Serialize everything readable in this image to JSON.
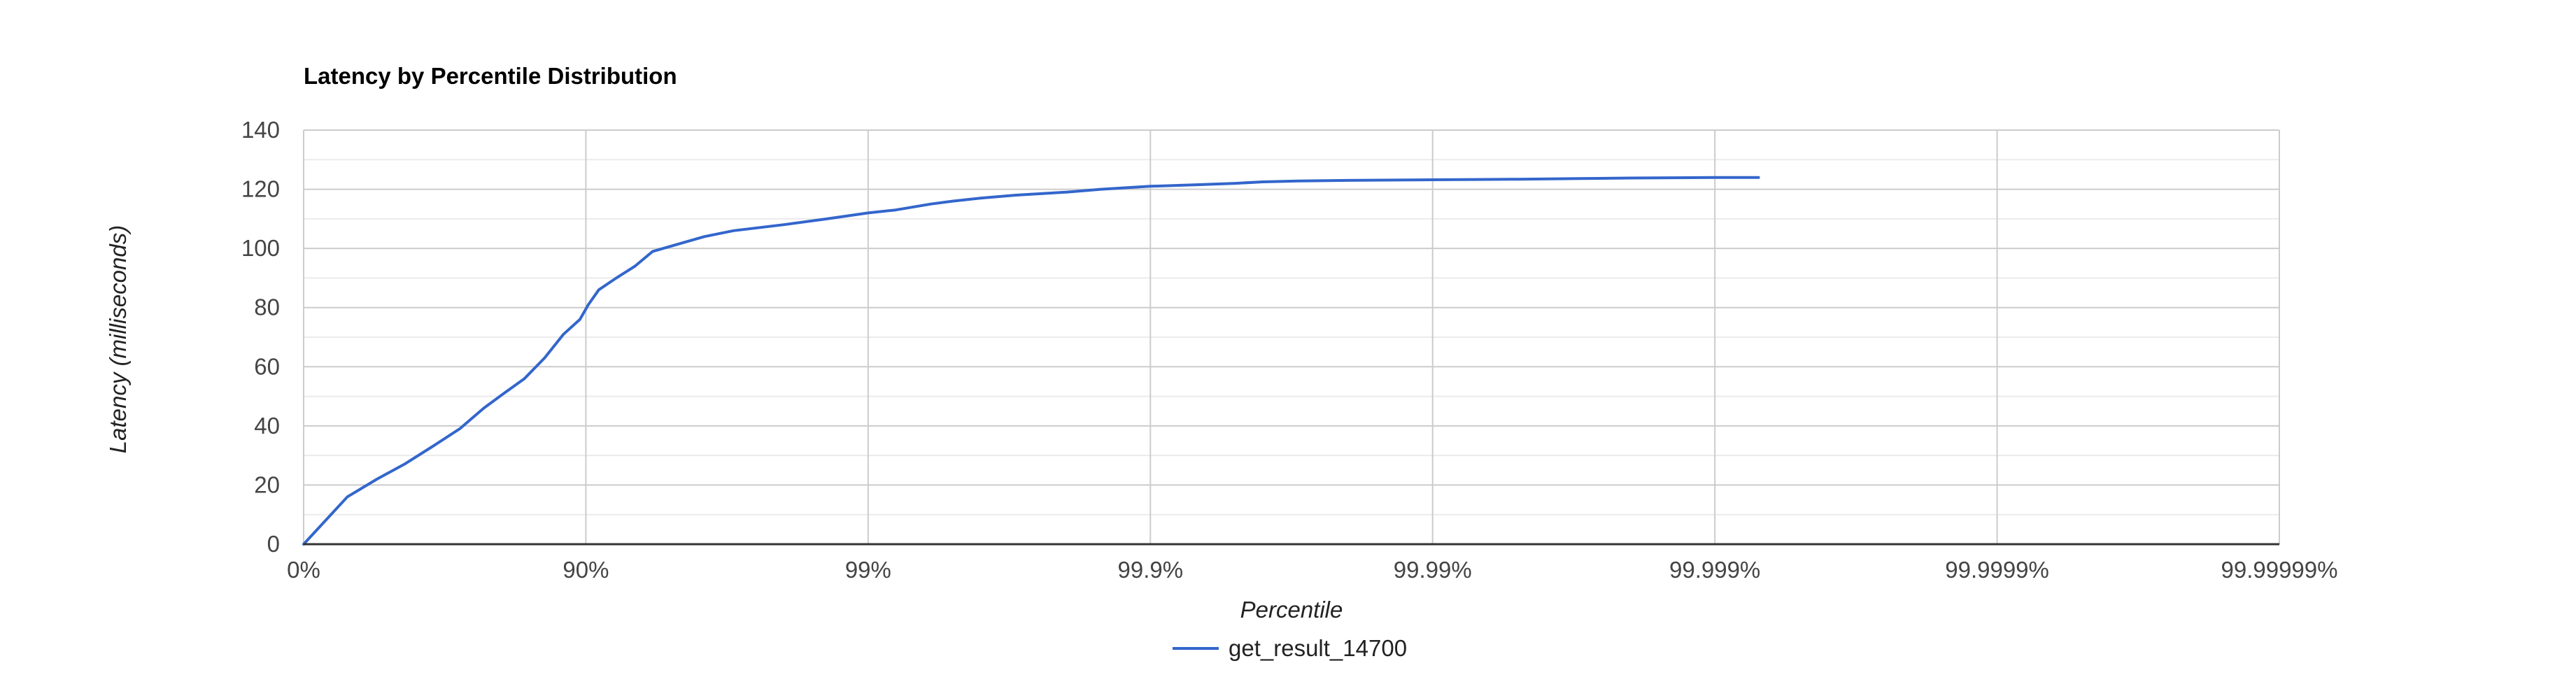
{
  "chart_data": {
    "type": "line",
    "title": "Latency by Percentile Distribution",
    "xlabel": "Percentile",
    "ylabel": "Latency (milliseconds)",
    "x_scale": "log-inverse-percentile",
    "x_ticks": [
      "0%",
      "90%",
      "99%",
      "99.9%",
      "99.99%",
      "99.999%",
      "99.9999%",
      "99.99999%"
    ],
    "y_ticks": [
      0,
      20,
      40,
      60,
      80,
      100,
      120,
      140
    ],
    "ylim": [
      0,
      140
    ],
    "grid": true,
    "legend_position": "bottom",
    "colors": {
      "series": "#3366cc",
      "major_grid": "#cccccc",
      "minor_grid": "#ebebeb",
      "axis": "#333333",
      "tick_text": "#444444",
      "title_text": "#000000"
    },
    "series": [
      {
        "name": "get_result_14700",
        "percentile": [
          0,
          30.0,
          45.0,
          56.0,
          65.0,
          72.0,
          77.0,
          80.5,
          83.5,
          86.0,
          88.0,
          89.5,
          90.2,
          91.0,
          92.2,
          93.3,
          94.2,
          95.5,
          96.2,
          97.0,
          98.0,
          98.6,
          99.0,
          99.2,
          99.4,
          99.5,
          99.6,
          99.7,
          99.8,
          99.85,
          99.9,
          99.93,
          99.95,
          99.96,
          99.97,
          99.98,
          99.985,
          99.99,
          99.993,
          99.995,
          99.997,
          99.998,
          99.999,
          99.9993
        ],
        "latency_ms": [
          0,
          16,
          22,
          27,
          33,
          39,
          46,
          51,
          56,
          63,
          71,
          76,
          81,
          86,
          90,
          94,
          99,
          102,
          104,
          106,
          108,
          110,
          112,
          113,
          115,
          116,
          117,
          118,
          119,
          120,
          121,
          121.5,
          122,
          122.5,
          122.8,
          123,
          123.1,
          123.2,
          123.3,
          123.4,
          123.6,
          123.8,
          124,
          124
        ]
      }
    ]
  }
}
